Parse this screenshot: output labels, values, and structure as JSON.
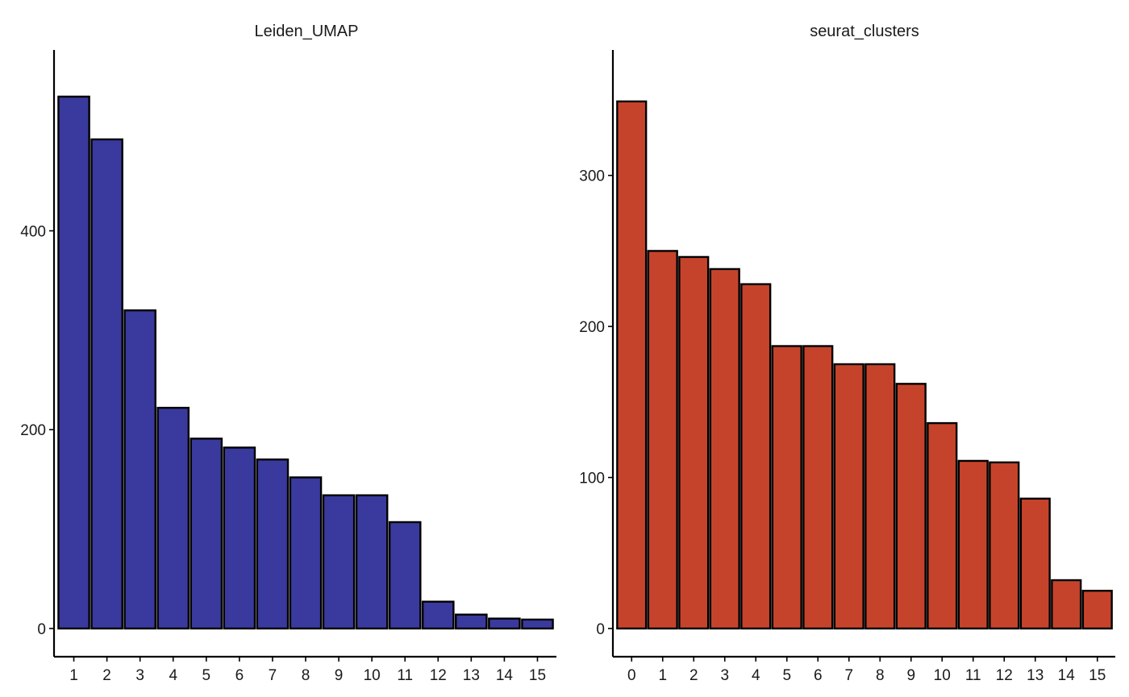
{
  "chart_data": [
    {
      "type": "bar",
      "title": "Leiden_UMAP",
      "xlabel": "",
      "ylabel": "",
      "categories": [
        "1",
        "2",
        "3",
        "4",
        "5",
        "6",
        "7",
        "8",
        "9",
        "10",
        "11",
        "12",
        "13",
        "14",
        "15"
      ],
      "values": [
        535,
        492,
        320,
        222,
        191,
        182,
        170,
        152,
        134,
        134,
        107,
        27,
        14,
        10,
        9
      ],
      "yticks": [
        0,
        200,
        400
      ],
      "ylim": [
        0,
        556
      ],
      "color": "#3A399D",
      "grid": false,
      "legend": "none"
    },
    {
      "type": "bar",
      "title": "seurat_clusters",
      "xlabel": "",
      "ylabel": "",
      "categories": [
        "0",
        "1",
        "2",
        "3",
        "4",
        "5",
        "6",
        "7",
        "8",
        "9",
        "10",
        "11",
        "12",
        "13",
        "14",
        "15"
      ],
      "values": [
        349,
        250,
        246,
        238,
        228,
        187,
        187,
        175,
        175,
        162,
        136,
        111,
        110,
        86,
        32,
        25
      ],
      "yticks": [
        0,
        100,
        200,
        300
      ],
      "ylim": [
        0,
        366
      ],
      "color": "#C6432B",
      "grid": false,
      "legend": "none"
    }
  ]
}
